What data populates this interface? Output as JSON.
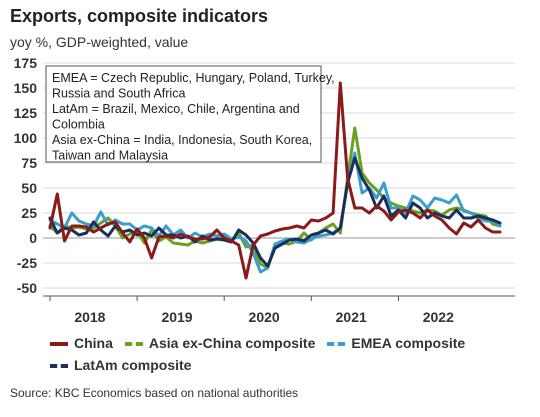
{
  "header": {
    "title": "Exports, composite indicators",
    "subtitle": "yoy %, GDP-weighted, value"
  },
  "source": "Source: KBC Economics based on national authorities",
  "annotation": [
    "EMEA = Czech Republic, Hungary, Poland, Turkey,",
    "Russia and South Africa",
    "LatAm = Brazil, Mexico, Chile, Argentina and",
    "Colombia",
    "Asia ex-China = India, Indonesia, South Korea,",
    "Taiwan and Malaysia"
  ],
  "colors": {
    "China": "#8b1a1a",
    "Asia ex-China composite": "#6aa121",
    "EMEA composite": "#3a9fcf",
    "LatAm composite": "#1b2f5b"
  },
  "chart_data": {
    "type": "line",
    "x_start": "2018-01",
    "x_freq": "monthly",
    "x_tick_labels": [
      "2018",
      "2019",
      "2020",
      "2021",
      "2022"
    ],
    "ylim": [
      -50,
      175
    ],
    "yticks": [
      -50,
      -25,
      0,
      25,
      50,
      75,
      100,
      125,
      150,
      175
    ],
    "grid": "horizontal",
    "legend_position": "bottom",
    "series": [
      {
        "name": "China",
        "style": "solid",
        "values": [
          10,
          44,
          -3,
          12,
          12,
          11,
          6,
          10,
          14,
          16,
          5,
          -4,
          9,
          0,
          -20,
          1,
          2,
          0,
          4,
          1,
          -1,
          -1,
          1,
          8,
          0,
          -3,
          -7,
          -40,
          -7,
          2,
          4,
          7,
          9,
          10,
          12,
          10,
          18,
          17,
          20,
          25,
          155,
          60,
          30,
          30,
          25,
          32,
          27,
          18,
          26,
          28,
          25,
          20,
          28,
          22,
          18,
          10,
          4,
          15,
          11,
          18,
          10,
          6,
          6
        ]
      },
      {
        "name": "Asia ex-China composite",
        "style": "dashed",
        "values": [
          12,
          5,
          12,
          10,
          11,
          9,
          10,
          15,
          20,
          12,
          0,
          4,
          7,
          -5,
          8,
          -3,
          1,
          -5,
          -6,
          -7,
          -3,
          -5,
          -3,
          -1,
          1,
          -3,
          5,
          -9,
          -7,
          -26,
          -30,
          -8,
          -5,
          -6,
          -3,
          5,
          -2,
          5,
          10,
          14,
          5,
          60,
          110,
          65,
          55,
          48,
          40,
          35,
          32,
          30,
          27,
          25,
          28,
          27,
          23,
          28,
          30,
          28,
          25,
          23,
          22,
          14,
          12
        ]
      },
      {
        "name": "EMEA composite",
        "style": "dashed",
        "values": [
          18,
          14,
          10,
          25,
          17,
          14,
          12,
          26,
          13,
          18,
          14,
          14,
          8,
          12,
          10,
          2,
          12,
          3,
          8,
          0,
          5,
          1,
          4,
          2,
          4,
          -1,
          1,
          -3,
          -15,
          -34,
          -30,
          -6,
          -3,
          -1,
          -4,
          -5,
          -1,
          2,
          3,
          5,
          10,
          55,
          85,
          45,
          50,
          40,
          55,
          30,
          30,
          25,
          42,
          38,
          30,
          40,
          38,
          35,
          43,
          27,
          25,
          20,
          17,
          17,
          12
        ]
      },
      {
        "name": "LatAm composite",
        "style": "dashed",
        "values": [
          20,
          5,
          10,
          8,
          3,
          5,
          16,
          8,
          2,
          12,
          6,
          8,
          3,
          5,
          2,
          10,
          3,
          3,
          0,
          2,
          -4,
          2,
          -2,
          -1,
          -2,
          -4,
          8,
          3,
          -5,
          -20,
          -28,
          -10,
          -6,
          -2,
          -1,
          -3,
          3,
          5,
          8,
          4,
          10,
          55,
          80,
          60,
          48,
          30,
          42,
          22,
          28,
          20,
          35,
          30,
          20,
          25,
          22,
          20,
          28,
          20,
          20,
          22,
          20,
          18,
          15
        ]
      }
    ]
  },
  "legend": [
    {
      "label": "China",
      "style": "solid"
    },
    {
      "label": "Asia ex-China composite",
      "style": "dashed"
    },
    {
      "label": "EMEA composite",
      "style": "dashed"
    },
    {
      "label": "LatAm composite",
      "style": "dashed"
    }
  ]
}
